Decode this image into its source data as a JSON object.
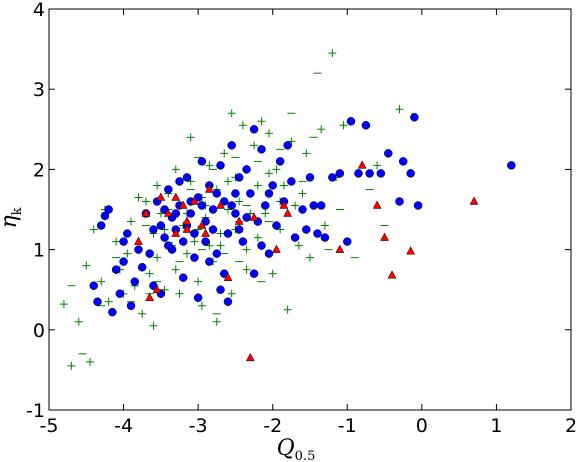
{
  "chart_data": {
    "type": "scatter",
    "title": "",
    "xlabel": "Q",
    "xlabel_sub": "0.5",
    "ylabel": "η",
    "ylabel_sub": "k",
    "xlim": [
      -5,
      2
    ],
    "ylim": [
      -1,
      4
    ],
    "xticks": [
      -5,
      -4,
      -3,
      -2,
      -1,
      0,
      1,
      2
    ],
    "yticks": [
      -1,
      0,
      1,
      2,
      3,
      4
    ],
    "xtick_labels": [
      "-5",
      "-4",
      "-3",
      "-2",
      "-1",
      "0",
      "1",
      "2"
    ],
    "ytick_labels": [
      "-1",
      "0",
      "1",
      "2",
      "3",
      "4"
    ],
    "grid": false,
    "legend": "none",
    "series": [
      {
        "marker": "plus",
        "color": "#008000",
        "points": [
          [
            -4.8,
            0.32
          ],
          [
            -4.7,
            -0.45
          ],
          [
            -4.5,
            0.8
          ],
          [
            -4.4,
            1.25
          ],
          [
            -4.3,
            0.6
          ],
          [
            -4.25,
            1.5
          ],
          [
            -4.2,
            0.35
          ],
          [
            -4.1,
            1.1
          ],
          [
            -4.05,
            0.75
          ],
          [
            -4.0,
            0.45
          ],
          [
            -3.95,
            0.95
          ],
          [
            -3.9,
            1.35
          ],
          [
            -3.85,
            0.55
          ],
          [
            -3.8,
            1.0
          ],
          [
            -3.75,
            0.2
          ],
          [
            -3.7,
            1.6
          ],
          [
            -3.65,
            0.7
          ],
          [
            -3.6,
            1.2
          ],
          [
            -3.55,
            0.9
          ],
          [
            -3.5,
            1.45
          ],
          [
            -3.45,
            0.5
          ],
          [
            -3.4,
            1.7
          ],
          [
            -3.35,
            1.05
          ],
          [
            -3.3,
            0.75
          ],
          [
            -3.25,
            1.55
          ],
          [
            -3.2,
            1.3
          ],
          [
            -3.15,
            0.95
          ],
          [
            -3.1,
            1.85
          ],
          [
            -3.05,
            1.1
          ],
          [
            -3.0,
            0.6
          ],
          [
            -2.95,
            1.65
          ],
          [
            -2.9,
            1.4
          ],
          [
            -2.85,
            2.05
          ],
          [
            -2.8,
            0.85
          ],
          [
            -2.75,
            1.75
          ],
          [
            -2.7,
            1.2
          ],
          [
            -2.65,
            2.2
          ],
          [
            -2.6,
            1.5
          ],
          [
            -2.55,
            0.45
          ],
          [
            -2.5,
            1.9
          ],
          [
            -2.45,
            1.35
          ],
          [
            -2.4,
            2.55
          ],
          [
            -2.35,
            1.0
          ],
          [
            -2.3,
            1.7
          ],
          [
            -2.25,
            2.3
          ],
          [
            -2.2,
            1.15
          ],
          [
            -2.15,
            2.6
          ],
          [
            -2.1,
            1.45
          ],
          [
            -2.05,
            1.95
          ],
          [
            -2.0,
            0.7
          ],
          [
            -1.95,
            2.0
          ],
          [
            -1.9,
            1.25
          ],
          [
            -1.85,
            1.8
          ],
          [
            -1.8,
            0.25
          ],
          [
            -1.75,
            2.35
          ],
          [
            -1.7,
            1.55
          ],
          [
            -1.65,
            1.05
          ],
          [
            -1.6,
            1.7
          ],
          [
            -1.55,
            2.2
          ],
          [
            -1.5,
            0.9
          ],
          [
            -1.45,
            1.55
          ],
          [
            -1.35,
            2.5
          ],
          [
            -1.3,
            1.3
          ],
          [
            -1.2,
            3.45
          ],
          [
            -1.15,
            1.9
          ],
          [
            -1.05,
            2.55
          ],
          [
            -0.6,
            2.05
          ],
          [
            -0.3,
            2.75
          ],
          [
            -3.3,
            2.0
          ],
          [
            -3.1,
            2.4
          ],
          [
            -2.95,
            0.3
          ],
          [
            -4.45,
            -0.4
          ],
          [
            -3.6,
            0.05
          ],
          [
            -2.75,
            0.1
          ],
          [
            -2.55,
            2.7
          ],
          [
            -2.35,
            0.75
          ],
          [
            -4.6,
            0.1
          ],
          [
            -3.55,
            1.8
          ],
          [
            -2.85,
            1.05
          ],
          [
            -2.45,
            1.6
          ],
          [
            -2.05,
            2.45
          ],
          [
            -1.9,
            1.6
          ],
          [
            -3.45,
            1.25
          ],
          [
            -3.15,
            1.45
          ],
          [
            -3.0,
            1.25
          ],
          [
            -2.9,
            1.55
          ],
          [
            -2.7,
            1.05
          ],
          [
            -2.6,
            1.85
          ],
          [
            -2.5,
            1.25
          ],
          [
            -2.3,
            1.45
          ],
          [
            -2.2,
            1.8
          ],
          [
            -3.25,
            0.45
          ],
          [
            -3.8,
            1.65
          ]
        ]
      },
      {
        "marker": "minus",
        "color": "#008000",
        "points": [
          [
            -4.7,
            0.55
          ],
          [
            -4.55,
            -0.3
          ],
          [
            -4.3,
            0.3
          ],
          [
            -4.1,
            0.9
          ],
          [
            -3.9,
            0.35
          ],
          [
            -3.7,
            1.3
          ],
          [
            -3.55,
            0.6
          ],
          [
            -3.4,
            1.5
          ],
          [
            -3.25,
            0.85
          ],
          [
            -3.1,
            1.75
          ],
          [
            -2.95,
            1.0
          ],
          [
            -2.8,
            2.0
          ],
          [
            -2.65,
            0.95
          ],
          [
            -2.5,
            2.15
          ],
          [
            -2.35,
            1.55
          ],
          [
            -2.2,
            2.1
          ],
          [
            -2.05,
            1.35
          ],
          [
            -1.9,
            2.25
          ],
          [
            -1.75,
            2.7
          ],
          [
            -1.6,
            1.85
          ],
          [
            -1.45,
            2.4
          ],
          [
            -1.4,
            3.2
          ],
          [
            -1.25,
            1.0
          ],
          [
            -1.1,
            1.5
          ],
          [
            -0.9,
            0.9
          ],
          [
            -0.7,
            1.75
          ],
          [
            -0.5,
            1.3
          ],
          [
            -2.75,
            0.2
          ],
          [
            -3.0,
            2.15
          ],
          [
            -2.45,
            0.85
          ],
          [
            -3.65,
            0.45
          ],
          [
            -2.15,
            0.6
          ]
        ]
      },
      {
        "marker": "circle",
        "color": "#0000ff",
        "points": [
          [
            -4.4,
            0.55
          ],
          [
            -4.35,
            0.35
          ],
          [
            -4.3,
            1.3
          ],
          [
            -4.25,
            1.42
          ],
          [
            -4.2,
            1.5
          ],
          [
            -4.15,
            0.22
          ],
          [
            -4.1,
            0.75
          ],
          [
            -4.05,
            0.45
          ],
          [
            -4.0,
            0.85
          ],
          [
            -3.95,
            1.2
          ],
          [
            -3.9,
            0.3
          ],
          [
            -3.85,
            0.6
          ],
          [
            -3.8,
            1.0
          ],
          [
            -3.75,
            0.78
          ],
          [
            -3.7,
            1.45
          ],
          [
            -3.65,
            0.95
          ],
          [
            -3.6,
            0.55
          ],
          [
            -3.55,
            1.6
          ],
          [
            -3.5,
            1.3
          ],
          [
            -3.45,
            1.15
          ],
          [
            -3.4,
            1.75
          ],
          [
            -3.35,
            1.4
          ],
          [
            -3.3,
            1.25
          ],
          [
            -3.25,
            1.55
          ],
          [
            -3.2,
            1.1
          ],
          [
            -3.15,
            1.9
          ],
          [
            -3.1,
            1.45
          ],
          [
            -3.05,
            0.9
          ],
          [
            -3.0,
            1.65
          ],
          [
            -2.95,
            2.1
          ],
          [
            -2.9,
            1.35
          ],
          [
            -2.85,
            1.8
          ],
          [
            -2.8,
            1.5
          ],
          [
            -2.75,
            0.95
          ],
          [
            -2.7,
            2.05
          ],
          [
            -2.65,
            1.6
          ],
          [
            -2.6,
            1.2
          ],
          [
            -2.55,
            2.3
          ],
          [
            -2.5,
            1.45
          ],
          [
            -2.45,
            1.9
          ],
          [
            -2.4,
            1.1
          ],
          [
            -2.35,
            2.0
          ],
          [
            -2.3,
            1.7
          ],
          [
            -2.25,
            2.5
          ],
          [
            -2.2,
            1.35
          ],
          [
            -2.15,
            2.25
          ],
          [
            -2.1,
            1.55
          ],
          [
            -2.05,
            0.95
          ],
          [
            -2.0,
            1.8
          ],
          [
            -1.95,
            1.3
          ],
          [
            -1.9,
            2.1
          ],
          [
            -1.85,
            1.6
          ],
          [
            -1.8,
            2.3
          ],
          [
            -1.75,
            1.85
          ],
          [
            -1.7,
            1.15
          ],
          [
            -1.6,
            1.5
          ],
          [
            -1.5,
            1.9
          ],
          [
            -1.45,
            1.55
          ],
          [
            -1.4,
            1.2
          ],
          [
            -1.35,
            1.55
          ],
          [
            -1.3,
            1.15
          ],
          [
            -1.2,
            1.9
          ],
          [
            -1.1,
            1.95
          ],
          [
            -1.0,
            1.1
          ],
          [
            -0.95,
            2.6
          ],
          [
            -0.85,
            1.95
          ],
          [
            -0.75,
            2.55
          ],
          [
            -0.7,
            1.95
          ],
          [
            -0.55,
            1.95
          ],
          [
            -0.45,
            2.2
          ],
          [
            -0.3,
            1.6
          ],
          [
            -0.25,
            2.1
          ],
          [
            -0.15,
            1.95
          ],
          [
            -0.1,
            2.65
          ],
          [
            -0.05,
            1.55
          ],
          [
            1.2,
            2.05
          ],
          [
            -2.25,
            0.7
          ],
          [
            -2.7,
            0.5
          ],
          [
            -3.2,
            0.65
          ],
          [
            -3.5,
            0.45
          ],
          [
            -2.85,
            0.85
          ],
          [
            -3.1,
            1.6
          ],
          [
            -2.9,
            1.1
          ],
          [
            -3.35,
            1.0
          ],
          [
            -2.6,
            0.35
          ],
          [
            -3.0,
            0.4
          ],
          [
            -2.65,
            0.7
          ],
          [
            -2.45,
            1.25
          ],
          [
            -2.15,
            1.05
          ],
          [
            -1.55,
            1.25
          ],
          [
            -2.05,
            1.7
          ],
          [
            -3.4,
            1.05
          ],
          [
            -3.25,
            1.85
          ],
          [
            -2.5,
            1.7
          ],
          [
            -2.8,
            1.25
          ],
          [
            -3.15,
            1.3
          ],
          [
            -3.05,
            1.2
          ],
          [
            -2.95,
            1.55
          ],
          [
            -2.75,
            1.7
          ],
          [
            -2.55,
            1.55
          ],
          [
            -2.35,
            1.4
          ],
          [
            -3.6,
            1.25
          ],
          [
            -3.45,
            1.5
          ],
          [
            -3.3,
            1.45
          ],
          [
            -4.0,
            1.1
          ]
        ]
      },
      {
        "marker": "triangle",
        "color": "#ff0000",
        "points": [
          [
            -3.7,
            1.45
          ],
          [
            -3.5,
            1.65
          ],
          [
            -3.4,
            1.45
          ],
          [
            -3.3,
            1.2
          ],
          [
            -3.2,
            1.55
          ],
          [
            -3.15,
            1.35
          ],
          [
            -3.05,
            1.6
          ],
          [
            -2.95,
            1.3
          ],
          [
            -2.85,
            1.75
          ],
          [
            -2.7,
            1.55
          ],
          [
            -2.6,
            0.65
          ],
          [
            -2.45,
            1.35
          ],
          [
            -2.3,
            -0.35
          ],
          [
            -2.25,
            1.4
          ],
          [
            -1.95,
            1.0
          ],
          [
            -1.8,
            1.45
          ],
          [
            -1.85,
            1.55
          ],
          [
            -3.65,
            0.4
          ],
          [
            -3.55,
            0.5
          ],
          [
            -3.8,
            1.1
          ],
          [
            -2.9,
            1.2
          ],
          [
            -1.1,
            1.0
          ],
          [
            -0.8,
            2.05
          ],
          [
            -0.6,
            1.55
          ],
          [
            -0.5,
            1.15
          ],
          [
            -0.4,
            0.68
          ],
          [
            -0.15,
            0.98
          ],
          [
            0.7,
            1.6
          ],
          [
            -3.3,
            1.65
          ],
          [
            -3.15,
            1.25
          ]
        ]
      }
    ]
  }
}
